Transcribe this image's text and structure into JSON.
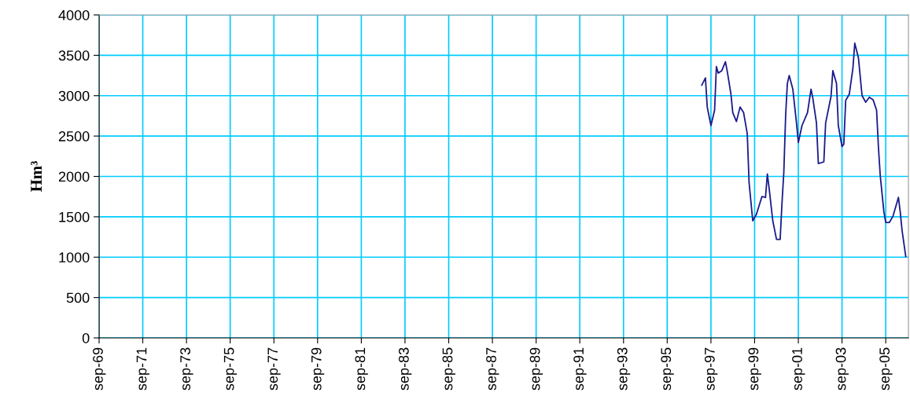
{
  "chart_data": {
    "type": "line",
    "ylabel": "Hm³",
    "x": [
      "1997-04",
      "1997-06",
      "1997-07",
      "1997-09",
      "1997-11",
      "1997-12",
      "1998-01",
      "1998-03",
      "1998-05",
      "1998-06",
      "1998-08",
      "1998-09",
      "1998-11",
      "1999-01",
      "1999-03",
      "1999-05",
      "1999-06",
      "1999-08",
      "1999-10",
      "2000-01",
      "2000-03",
      "2000-04",
      "2000-05",
      "2000-07",
      "2000-09",
      "2000-11",
      "2000-12",
      "2001-01",
      "2001-02",
      "2001-03",
      "2001-04",
      "2001-06",
      "2001-08",
      "2001-09",
      "2001-11",
      "2002-02",
      "2002-04",
      "2002-05",
      "2002-07",
      "2002-08",
      "2002-11",
      "2002-12",
      "2003-03",
      "2003-04",
      "2003-06",
      "2003-07",
      "2003-09",
      "2003-10",
      "2003-11",
      "2004-01",
      "2004-03",
      "2004-04",
      "2004-06",
      "2004-08",
      "2004-10",
      "2004-12",
      "2005-02",
      "2005-04",
      "2005-05",
      "2005-06",
      "2005-08",
      "2005-09",
      "2005-11",
      "2006-01",
      "2006-04",
      "2006-05",
      "2006-06",
      "2006-08"
    ],
    "series": [
      {
        "color": "#1a1a8c",
        "values": [
          3130,
          3220,
          2860,
          2630,
          2820,
          3360,
          3280,
          3310,
          3420,
          3300,
          3020,
          2790,
          2680,
          2860,
          2790,
          2530,
          1920,
          1450,
          1530,
          1750,
          1740,
          2030,
          1850,
          1450,
          1220,
          1220,
          1660,
          2050,
          2760,
          3150,
          3250,
          3080,
          2660,
          2420,
          2630,
          2790,
          3080,
          2970,
          2660,
          2160,
          2180,
          2660,
          2990,
          3310,
          3150,
          2630,
          2370,
          2400,
          2940,
          3020,
          3340,
          3650,
          3470,
          3000,
          2920,
          2980,
          2950,
          2820,
          2370,
          2010,
          1560,
          1430,
          1430,
          1510,
          1740,
          1560,
          1330,
          1010
        ]
      }
    ],
    "xlim": [
      "1969-09",
      "2006-09-15"
    ],
    "xticks": [
      {
        "value": "1969-09",
        "label": "sep-69"
      },
      {
        "value": "1971-09",
        "label": "sep-71"
      },
      {
        "value": "1973-09",
        "label": "sep-73"
      },
      {
        "value": "1975-09",
        "label": "sep-75"
      },
      {
        "value": "1977-09",
        "label": "sep-77"
      },
      {
        "value": "1979-09",
        "label": "sep-79"
      },
      {
        "value": "1981-09",
        "label": "sep-81"
      },
      {
        "value": "1983-09",
        "label": "sep-83"
      },
      {
        "value": "1985-09",
        "label": "sep-85"
      },
      {
        "value": "1987-09",
        "label": "sep-87"
      },
      {
        "value": "1989-09",
        "label": "sep-89"
      },
      {
        "value": "1991-09",
        "label": "sep-91"
      },
      {
        "value": "1993-09",
        "label": "sep-93"
      },
      {
        "value": "1995-09",
        "label": "sep-95"
      },
      {
        "value": "1997-09",
        "label": "sep-97"
      },
      {
        "value": "1999-09",
        "label": "sep-99"
      },
      {
        "value": "2001-09",
        "label": "sep-01"
      },
      {
        "value": "2003-09",
        "label": "sep-03"
      },
      {
        "value": "2005-09",
        "label": "sep-05"
      }
    ],
    "ylim": [
      0,
      4000
    ],
    "yticks": [
      0,
      500,
      1000,
      1500,
      2000,
      2500,
      3000,
      3500,
      4000
    ],
    "grid": true,
    "marker": "none",
    "line_style": "solid"
  }
}
